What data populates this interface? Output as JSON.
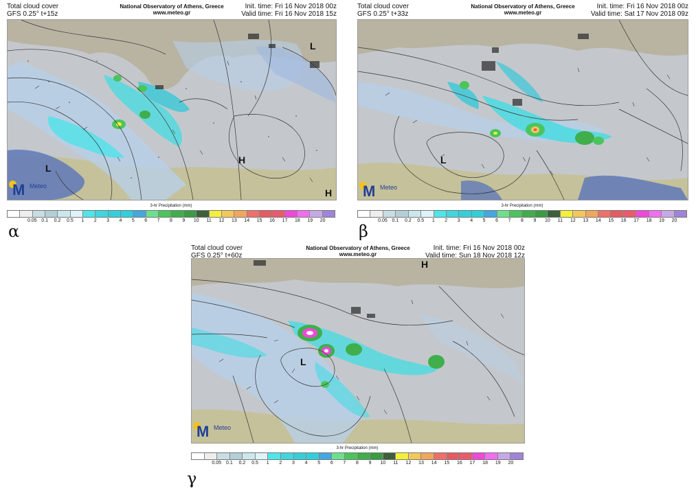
{
  "legend_colors": [
    "#ffffff",
    "#eeeeee",
    "#c9dde3",
    "#b3cfd7",
    "#cbe7ee",
    "#dff3f7",
    "#4ee6ea",
    "#3fd6e0",
    "#35cfda",
    "#2fd0db",
    "#43a8e0",
    "#6ce08f",
    "#4cc45c",
    "#3fae4b",
    "#3a9c43",
    "#3e5f3c",
    "#f4ef3a",
    "#f3c85b",
    "#f1a65c",
    "#ef6f6a",
    "#e45b62",
    "#e85a6d",
    "#f048d8",
    "#f06ef0",
    "#c7a8e6",
    "#9f84d8"
  ],
  "legend_ticks": [
    "0.05",
    "0.1",
    "0.2",
    "0.5",
    "1",
    "2",
    "3",
    "4",
    "5",
    "6",
    "7",
    "8",
    "9",
    "10",
    "11",
    "12",
    "13",
    "14",
    "15",
    "16",
    "17",
    "18",
    "19",
    "20"
  ],
  "panels": [
    {
      "id": "alpha",
      "greek": "α",
      "title_line1": "Total cloud cover",
      "title_line2": "GFS 0.25° t+15z",
      "center_line1": "National Observatory of Athens, Greece",
      "center_line2": "www.meteo.gr",
      "init": "Init. time: Fri 16 Nov 2018 00z",
      "valid": "Valid time: Fri 16 Nov 2018 15z",
      "legend_title": "3-hr Precipitation (mm)",
      "pressure_labels": [
        "L",
        "H",
        "L",
        "H"
      ],
      "logo_text": "Meteo"
    },
    {
      "id": "beta",
      "greek": "β",
      "title_line1": "Total cloud cover",
      "title_line2": "GFS 0.25° t+33z",
      "center_line1": "National Observatory of Athens, Greece",
      "center_line2": "www.meteo.gr",
      "init": "Init. time: Fri 16 Nov 2018 00z",
      "valid": "Valid time: Sat 17 Nov 2018 09z",
      "legend_title": "3-hr Precipitation (mm)",
      "pressure_labels": [
        "L"
      ],
      "logo_text": "Meteo"
    },
    {
      "id": "gamma",
      "greek": "γ",
      "title_line1": "Total cloud cover",
      "title_line2": "GFS 0.25° t+60z",
      "center_line1": "National Observatory of Athens, Greece",
      "center_line2": "www.meteo.gr",
      "init": "Init. time: Fri 16 Nov 2018 00z",
      "valid": "Valid time: Sun 18 Nov 2018 12z",
      "legend_title": "3-hr Precipitation (mm)",
      "pressure_labels": [
        "H",
        "L"
      ],
      "logo_text": "Meteo"
    }
  ]
}
